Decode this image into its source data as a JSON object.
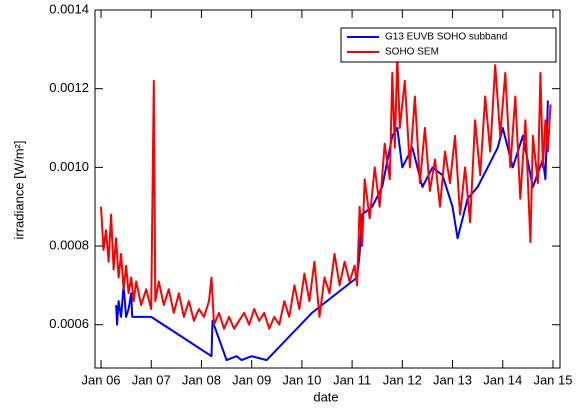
{
  "chart_data": {
    "type": "line",
    "xlabel": "date",
    "ylabel": "irradiance [W/m²]",
    "xlim": [
      2005.88,
      2015.14
    ],
    "xticks": [
      {
        "value": 2006,
        "label": "Jan 06"
      },
      {
        "value": 2007,
        "label": "Jan 07"
      },
      {
        "value": 2008,
        "label": "Jan 08"
      },
      {
        "value": 2009,
        "label": "Jan 09"
      },
      {
        "value": 2010,
        "label": "Jan 10"
      },
      {
        "value": 2011,
        "label": "Jan 11"
      },
      {
        "value": 2012,
        "label": "Jan 12"
      },
      {
        "value": 2013,
        "label": "Jan 13"
      },
      {
        "value": 2014,
        "label": "Jan 14"
      },
      {
        "value": 2015,
        "label": "Jan 15"
      }
    ],
    "ylim": [
      0.00049,
      0.0014
    ],
    "yticks": [
      0.0006,
      0.0008,
      {
        "value": 0.001,
        "label": "0.0010"
      },
      0.0012,
      0.0014
    ],
    "legend": "upper right",
    "series": [
      {
        "name": "G13 EUVB SOHO subband",
        "color": "#0000ff",
        "x": [
          2006.3,
          2006.32,
          2006.35,
          2006.4,
          2006.45,
          2006.5,
          2006.55,
          2006.6,
          2006.62,
          2007.0,
          2007.6,
          2008.2,
          2008.22,
          2008.5,
          2008.7,
          2008.8,
          2009.0,
          2009.3,
          2010.2,
          2011.1,
          2011.15,
          2011.2,
          2011.4,
          2011.6,
          2011.8,
          2011.9,
          2012.0,
          2012.2,
          2012.4,
          2012.6,
          2012.8,
          2013.0,
          2013.1,
          2013.3,
          2013.5,
          2013.7,
          2013.9,
          2014.0,
          2014.2,
          2014.4,
          2014.6,
          2014.8,
          2014.85,
          2014.9
        ],
        "values": [
          0.00065,
          0.0006,
          0.00066,
          0.00062,
          0.0007,
          0.00062,
          0.00064,
          0.00068,
          0.00062,
          0.00062,
          0.00057,
          0.00052,
          0.00061,
          0.00051,
          0.00052,
          0.00051,
          0.00052,
          0.00051,
          0.00063,
          0.00072,
          0.00078,
          0.00088,
          0.0009,
          0.00095,
          0.00108,
          0.0011,
          0.001,
          0.00105,
          0.00095,
          0.001,
          0.00098,
          0.0009,
          0.00082,
          0.00092,
          0.00095,
          0.001,
          0.00105,
          0.0011,
          0.001,
          0.00108,
          0.00095,
          0.00102,
          0.00097,
          0.00117
        ]
      },
      {
        "name": "SOHO SEM",
        "color": "#ff0000",
        "x": [
          2006.0,
          2006.05,
          2006.1,
          2006.15,
          2006.2,
          2006.25,
          2006.3,
          2006.35,
          2006.4,
          2006.45,
          2006.5,
          2006.55,
          2006.6,
          2006.65,
          2006.7,
          2006.8,
          2006.9,
          2007.0,
          2007.05,
          2007.08,
          2007.15,
          2007.25,
          2007.35,
          2007.45,
          2007.55,
          2007.65,
          2007.75,
          2007.85,
          2007.95,
          2008.05,
          2008.15,
          2008.2,
          2008.25,
          2008.35,
          2008.45,
          2008.55,
          2008.65,
          2008.75,
          2008.85,
          2008.95,
          2009.05,
          2009.15,
          2009.25,
          2009.35,
          2009.45,
          2009.55,
          2009.65,
          2009.75,
          2009.85,
          2009.95,
          2010.05,
          2010.15,
          2010.25,
          2010.35,
          2010.45,
          2010.55,
          2010.65,
          2010.75,
          2010.85,
          2010.95,
          2011.05,
          2011.1,
          2011.15,
          2011.2,
          2011.25,
          2011.35,
          2011.45,
          2011.55,
          2011.65,
          2011.75,
          2011.8,
          2011.85,
          2011.9,
          2011.95,
          2012.05,
          2012.15,
          2012.25,
          2012.35,
          2012.45,
          2012.55,
          2012.65,
          2012.75,
          2012.85,
          2012.95,
          2013.05,
          2013.15,
          2013.25,
          2013.35,
          2013.45,
          2013.55,
          2013.65,
          2013.75,
          2013.85,
          2013.95,
          2014.05,
          2014.15,
          2014.25,
          2014.35,
          2014.45,
          2014.55,
          2014.6,
          2014.7,
          2014.75,
          2014.8,
          2014.85,
          2014.9,
          2014.95
        ],
        "values": [
          0.0009,
          0.00079,
          0.00084,
          0.00076,
          0.00088,
          0.00074,
          0.00082,
          0.00072,
          0.00078,
          0.00069,
          0.00075,
          0.00068,
          0.00072,
          0.00066,
          0.00071,
          0.00065,
          0.00069,
          0.00064,
          0.00122,
          0.00066,
          0.00071,
          0.00065,
          0.00069,
          0.00063,
          0.00068,
          0.00062,
          0.00066,
          0.00061,
          0.00064,
          0.00062,
          0.00066,
          0.00072,
          0.0006,
          0.00063,
          0.00059,
          0.00062,
          0.00059,
          0.00061,
          0.00063,
          0.0006,
          0.00064,
          0.00061,
          0.00063,
          0.00059,
          0.00062,
          0.0006,
          0.00066,
          0.00062,
          0.0007,
          0.00064,
          0.00073,
          0.00066,
          0.00076,
          0.00062,
          0.00072,
          0.00068,
          0.00078,
          0.0007,
          0.00076,
          0.00071,
          0.00075,
          0.0007,
          0.0009,
          0.0008,
          0.00097,
          0.00087,
          0.001,
          0.0009,
          0.00106,
          0.00097,
          0.00124,
          0.00105,
          0.00128,
          0.0011,
          0.00122,
          0.001,
          0.00118,
          0.00096,
          0.0011,
          0.00094,
          0.00102,
          0.0009,
          0.00104,
          0.00096,
          0.00108,
          0.00088,
          0.001,
          0.00086,
          0.00112,
          0.00098,
          0.00118,
          0.00104,
          0.00126,
          0.00108,
          0.00124,
          0.001,
          0.00118,
          0.00092,
          0.00112,
          0.00081,
          0.00108,
          0.00096,
          0.00124,
          0.001,
          0.00112,
          0.00104,
          0.00116
        ]
      }
    ]
  }
}
